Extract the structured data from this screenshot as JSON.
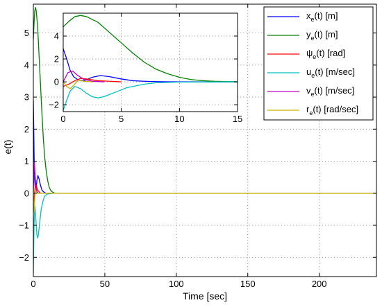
{
  "chart_data": {
    "type": "line",
    "xlabel": "Time [sec]",
    "ylabel": "e(t)",
    "grid": true,
    "legend_position": "top-right",
    "main": {
      "xlim": [
        0,
        240
      ],
      "ylim": [
        -2.6,
        5.9
      ],
      "xticks": [
        0,
        50,
        100,
        150,
        200
      ],
      "yticks": [
        -2,
        -1,
        0,
        1,
        2,
        3,
        4,
        5
      ]
    },
    "inset": {
      "xlim": [
        0,
        15
      ],
      "ylim": [
        -2.6,
        6.0
      ],
      "xticks": [
        0,
        5,
        10,
        15
      ],
      "yticks": [
        -2,
        0,
        2,
        4
      ]
    },
    "series": [
      {
        "name": "xe(t) [m]",
        "base": "x",
        "sub": "e",
        "rest": "(t) [m]",
        "color": "#0000ff",
        "points": [
          [
            0,
            2.9
          ],
          [
            0.3,
            2.0
          ],
          [
            0.6,
            1.0
          ],
          [
            0.9,
            0.45
          ],
          [
            1.3,
            0.15
          ],
          [
            1.8,
            0.1
          ],
          [
            2.5,
            0.4
          ],
          [
            3.2,
            0.55
          ],
          [
            4,
            0.45
          ],
          [
            5,
            0.25
          ],
          [
            6,
            0.1
          ],
          [
            7,
            0.05
          ],
          [
            8,
            0.02
          ],
          [
            9,
            0
          ],
          [
            15,
            0
          ],
          [
            240,
            0
          ]
        ]
      },
      {
        "name": "ye(t) [m]",
        "base": "y",
        "sub": "e",
        "rest": "(t) [m]",
        "color": "#008000",
        "points": [
          [
            0,
            4.8
          ],
          [
            0.5,
            5.3
          ],
          [
            1,
            5.7
          ],
          [
            1.5,
            5.8
          ],
          [
            2,
            5.7
          ],
          [
            3,
            5.2
          ],
          [
            4,
            4.3
          ],
          [
            5,
            3.4
          ],
          [
            6,
            2.5
          ],
          [
            7,
            1.7
          ],
          [
            8,
            1.1
          ],
          [
            9,
            0.7
          ],
          [
            10,
            0.4
          ],
          [
            11,
            0.2
          ],
          [
            12,
            0.1
          ],
          [
            13,
            0.05
          ],
          [
            15,
            0
          ],
          [
            240,
            0
          ]
        ]
      },
      {
        "name": "ψe(t) [rad]",
        "base": "ψ",
        "sub": "e",
        "rest": "(t) [rad]",
        "color": "#ff0000",
        "points": [
          [
            0,
            -0.4
          ],
          [
            0.5,
            -0.2
          ],
          [
            1,
            0.1
          ],
          [
            1.5,
            0.3
          ],
          [
            2,
            0.25
          ],
          [
            3,
            0.1
          ],
          [
            4,
            0.05
          ],
          [
            5,
            0
          ],
          [
            240,
            0
          ]
        ]
      },
      {
        "name": "ue(t) [m/sec]",
        "base": "u",
        "sub": "e",
        "rest": "(t) [m/sec]",
        "color": "#00c0c0",
        "points": [
          [
            0,
            -2.5
          ],
          [
            0.3,
            -1.6
          ],
          [
            0.6,
            -0.8
          ],
          [
            1,
            -0.4
          ],
          [
            1.5,
            -0.6
          ],
          [
            2,
            -1.0
          ],
          [
            2.5,
            -1.3
          ],
          [
            3,
            -1.4
          ],
          [
            3.5,
            -1.3
          ],
          [
            4.5,
            -0.9
          ],
          [
            5.5,
            -0.5
          ],
          [
            7,
            -0.2
          ],
          [
            8,
            -0.08
          ],
          [
            10,
            -0.02
          ],
          [
            15,
            0
          ],
          [
            240,
            0
          ]
        ]
      },
      {
        "name": "ve(t) [m/sec]",
        "base": "v",
        "sub": "e",
        "rest": "(t) [m/sec]",
        "color": "#c000c0",
        "points": [
          [
            0,
            0
          ],
          [
            0.4,
            0.8
          ],
          [
            0.8,
            0.95
          ],
          [
            1.2,
            0.6
          ],
          [
            1.8,
            0.2
          ],
          [
            2.5,
            0.05
          ],
          [
            3.5,
            0
          ],
          [
            240,
            0
          ]
        ]
      },
      {
        "name": "re(t) [rad/sec]",
        "base": "r",
        "sub": "e",
        "rest": "(t) [rad/sec]",
        "color": "#c8b400",
        "points": [
          [
            0,
            0
          ],
          [
            0.3,
            -0.4
          ],
          [
            0.6,
            -0.6
          ],
          [
            0.9,
            -0.3
          ],
          [
            1.3,
            0.15
          ],
          [
            1.8,
            0.05
          ],
          [
            2.5,
            0
          ],
          [
            240,
            0
          ]
        ]
      }
    ]
  }
}
